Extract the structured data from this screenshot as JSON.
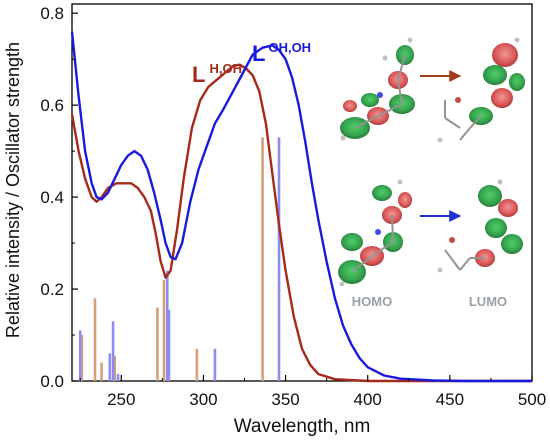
{
  "chart_data": {
    "type": "line",
    "xlabel": "Wavelength, nm",
    "ylabel": "Relative intensity / Oscillator strength",
    "xlim": [
      220,
      500
    ],
    "ylim": [
      0,
      0.82
    ],
    "xticks": [
      250,
      300,
      350,
      400,
      450,
      500
    ],
    "yticks": [
      0.0,
      0.2,
      0.4,
      0.6,
      0.8
    ],
    "grid": false,
    "series": [
      {
        "label_main": "L",
        "label_sup": "H,OH",
        "color": "#a52a1a",
        "points": [
          [
            220,
            0.58
          ],
          [
            224,
            0.5
          ],
          [
            228,
            0.44
          ],
          [
            232,
            0.4
          ],
          [
            235,
            0.39
          ],
          [
            238,
            0.4
          ],
          [
            242,
            0.42
          ],
          [
            247,
            0.43
          ],
          [
            252,
            0.43
          ],
          [
            256,
            0.43
          ],
          [
            260,
            0.42
          ],
          [
            264,
            0.4
          ],
          [
            268,
            0.37
          ],
          [
            271,
            0.32
          ],
          [
            274,
            0.26
          ],
          [
            277,
            0.225
          ],
          [
            280,
            0.24
          ],
          [
            284,
            0.33
          ],
          [
            288,
            0.44
          ],
          [
            293,
            0.55
          ],
          [
            298,
            0.61
          ],
          [
            303,
            0.64
          ],
          [
            308,
            0.655
          ],
          [
            313,
            0.67
          ],
          [
            318,
            0.685
          ],
          [
            322,
            0.688
          ],
          [
            326,
            0.68
          ],
          [
            330,
            0.665
          ],
          [
            334,
            0.63
          ],
          [
            338,
            0.56
          ],
          [
            342,
            0.45
          ],
          [
            346,
            0.34
          ],
          [
            350,
            0.24
          ],
          [
            355,
            0.14
          ],
          [
            360,
            0.07
          ],
          [
            365,
            0.035
          ],
          [
            370,
            0.015
          ],
          [
            380,
            0.004
          ],
          [
            400,
            0.0
          ],
          [
            500,
            0.0
          ]
        ]
      },
      {
        "label_main": "L",
        "label_sup": "OH,OH",
        "color": "#1a1adc",
        "points": [
          [
            220,
            0.76
          ],
          [
            224,
            0.62
          ],
          [
            228,
            0.5
          ],
          [
            232,
            0.43
          ],
          [
            235,
            0.4
          ],
          [
            238,
            0.395
          ],
          [
            242,
            0.41
          ],
          [
            246,
            0.44
          ],
          [
            250,
            0.47
          ],
          [
            254,
            0.49
          ],
          [
            258,
            0.5
          ],
          [
            262,
            0.49
          ],
          [
            266,
            0.46
          ],
          [
            270,
            0.41
          ],
          [
            274,
            0.35
          ],
          [
            277,
            0.3
          ],
          [
            280,
            0.27
          ],
          [
            283,
            0.265
          ],
          [
            287,
            0.3
          ],
          [
            292,
            0.39
          ],
          [
            297,
            0.46
          ],
          [
            302,
            0.51
          ],
          [
            307,
            0.56
          ],
          [
            312,
            0.59
          ],
          [
            318,
            0.63
          ],
          [
            324,
            0.67
          ],
          [
            330,
            0.71
          ],
          [
            336,
            0.725
          ],
          [
            342,
            0.73
          ],
          [
            346,
            0.72
          ],
          [
            350,
            0.7
          ],
          [
            354,
            0.66
          ],
          [
            358,
            0.6
          ],
          [
            362,
            0.52
          ],
          [
            366,
            0.43
          ],
          [
            370,
            0.35
          ],
          [
            375,
            0.26
          ],
          [
            380,
            0.18
          ],
          [
            385,
            0.12
          ],
          [
            390,
            0.08
          ],
          [
            395,
            0.05
          ],
          [
            400,
            0.03
          ],
          [
            410,
            0.012
          ],
          [
            420,
            0.005
          ],
          [
            440,
            0.001
          ],
          [
            460,
            0.0
          ],
          [
            500,
            0.0
          ]
        ]
      }
    ],
    "sticks": [
      {
        "series": "H,OH",
        "color": "#d4a07a",
        "x": [
          226,
          234,
          238,
          246,
          272,
          276,
          296,
          336
        ],
        "y": [
          0.1,
          0.18,
          0.04,
          0.055,
          0.16,
          0.22,
          0.07,
          0.53
        ]
      },
      {
        "series": "OH,OH",
        "color": "#8c8cf0",
        "x": [
          225,
          243,
          245,
          248,
          278,
          279,
          307,
          346
        ],
        "y": [
          0.11,
          0.06,
          0.13,
          0.015,
          0.24,
          0.155,
          0.07,
          0.53
        ]
      }
    ],
    "orbital_labels": [
      "HOMO",
      "LUMO"
    ]
  }
}
